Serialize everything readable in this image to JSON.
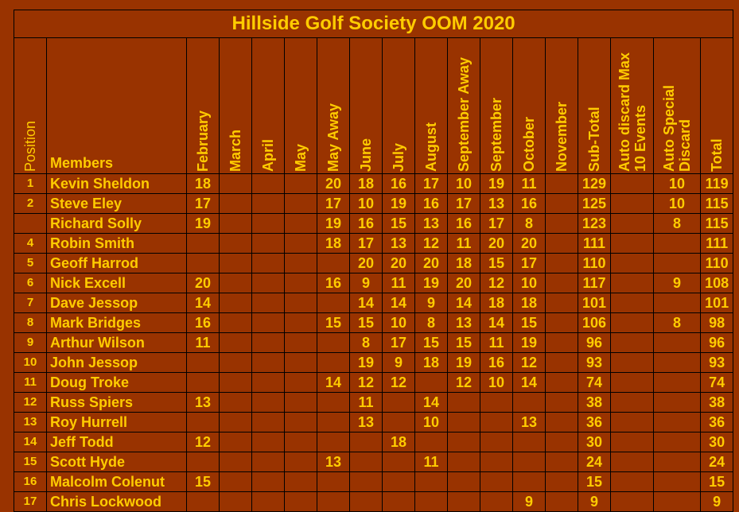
{
  "title": "Hillside Golf Society OOM 2020",
  "table": {
    "columns": [
      "Position",
      "Members",
      "February",
      "March",
      "April",
      "May",
      "May Away",
      "June",
      "July",
      "August",
      "September Away",
      "September",
      "October",
      "November",
      "Sub-Total",
      "Auto discard Max 10 Events",
      "Auto Special Discard",
      "Total"
    ],
    "rows": [
      [
        1,
        "Kevin Sheldon",
        18,
        null,
        null,
        null,
        20,
        18,
        16,
        17,
        10,
        19,
        11,
        null,
        129,
        null,
        10,
        119
      ],
      [
        2,
        "Steve Eley",
        17,
        null,
        null,
        null,
        17,
        10,
        19,
        16,
        17,
        13,
        16,
        null,
        125,
        null,
        10,
        115
      ],
      [
        null,
        "Richard Solly",
        19,
        null,
        null,
        null,
        19,
        16,
        15,
        13,
        16,
        17,
        8,
        null,
        123,
        null,
        8,
        115
      ],
      [
        4,
        "Robin Smith",
        null,
        null,
        null,
        null,
        18,
        17,
        13,
        12,
        11,
        20,
        20,
        null,
        111,
        null,
        null,
        111
      ],
      [
        5,
        "Geoff Harrod",
        null,
        null,
        null,
        null,
        null,
        20,
        20,
        20,
        18,
        15,
        17,
        null,
        110,
        null,
        null,
        110
      ],
      [
        6,
        "Nick Excell",
        20,
        null,
        null,
        null,
        16,
        9,
        11,
        19,
        20,
        12,
        10,
        null,
        117,
        null,
        9,
        108
      ],
      [
        7,
        "Dave Jessop",
        14,
        null,
        null,
        null,
        null,
        14,
        14,
        9,
        14,
        18,
        18,
        null,
        101,
        null,
        null,
        101
      ],
      [
        8,
        "Mark Bridges",
        16,
        null,
        null,
        null,
        15,
        15,
        10,
        8,
        13,
        14,
        15,
        null,
        106,
        null,
        8,
        98
      ],
      [
        9,
        "Arthur Wilson",
        11,
        null,
        null,
        null,
        null,
        8,
        17,
        15,
        15,
        11,
        19,
        null,
        96,
        null,
        null,
        96
      ],
      [
        10,
        "John Jessop",
        null,
        null,
        null,
        null,
        null,
        19,
        9,
        18,
        19,
        16,
        12,
        null,
        93,
        null,
        null,
        93
      ],
      [
        11,
        "Doug Troke",
        null,
        null,
        null,
        null,
        14,
        12,
        12,
        null,
        12,
        10,
        14,
        null,
        74,
        null,
        null,
        74
      ],
      [
        12,
        "Russ Spiers",
        13,
        null,
        null,
        null,
        null,
        11,
        null,
        14,
        null,
        null,
        null,
        null,
        38,
        null,
        null,
        38
      ],
      [
        13,
        "Roy Hurrell",
        null,
        null,
        null,
        null,
        null,
        13,
        null,
        10,
        null,
        null,
        13,
        null,
        36,
        null,
        null,
        36
      ],
      [
        14,
        "Jeff Todd",
        12,
        null,
        null,
        null,
        null,
        null,
        18,
        null,
        null,
        null,
        null,
        null,
        30,
        null,
        null,
        30
      ],
      [
        15,
        "Scott Hyde",
        null,
        null,
        null,
        null,
        13,
        null,
        null,
        11,
        null,
        null,
        null,
        null,
        24,
        null,
        null,
        24
      ],
      [
        16,
        "Malcolm Colenut",
        15,
        null,
        null,
        null,
        null,
        null,
        null,
        null,
        null,
        null,
        null,
        null,
        15,
        null,
        null,
        15
      ],
      [
        17,
        "Chris Lockwood",
        null,
        null,
        null,
        null,
        null,
        null,
        null,
        null,
        null,
        null,
        9,
        null,
        9,
        null,
        null,
        9
      ]
    ]
  }
}
